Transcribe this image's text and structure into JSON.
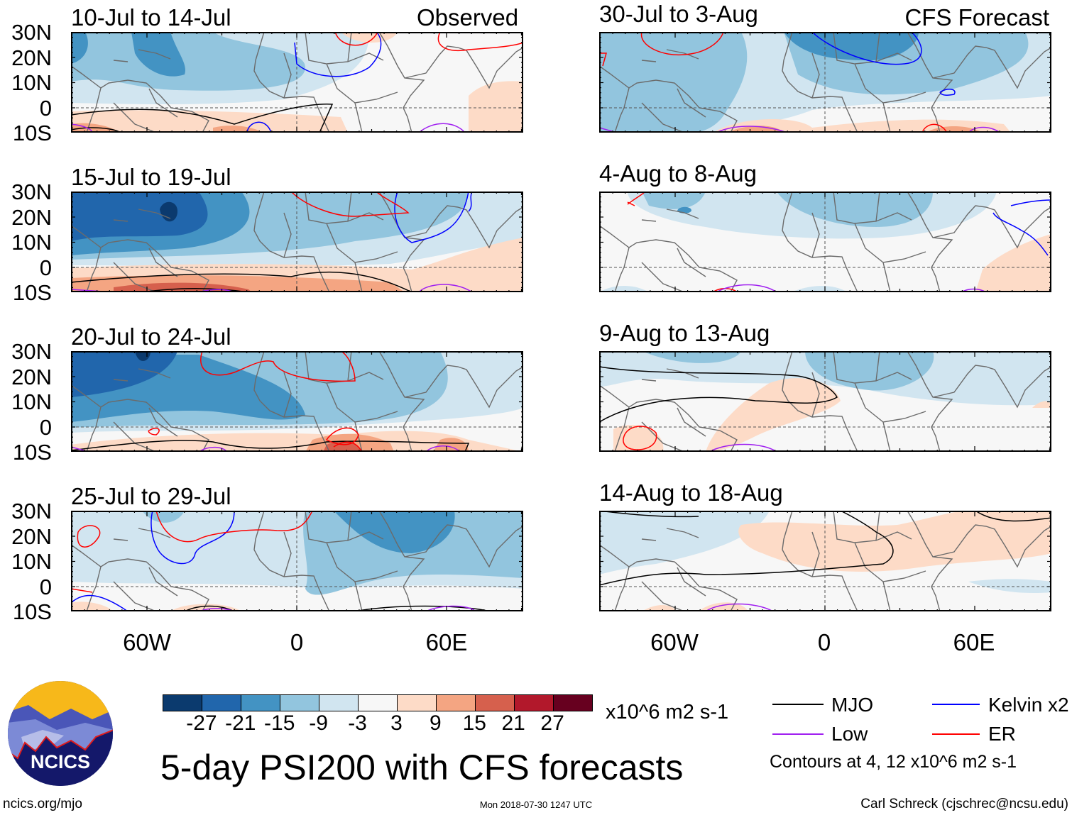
{
  "header": {
    "observed_label": "Observed",
    "forecast_label": "CFS Forecast"
  },
  "panels": {
    "left": [
      "10-Jul to 14-Jul",
      "15-Jul to 19-Jul",
      "20-Jul to 24-Jul",
      "25-Jul to 29-Jul"
    ],
    "right": [
      "30-Jul to 3-Aug",
      "4-Aug to 8-Aug",
      "9-Aug to 13-Aug",
      "14-Aug to 18-Aug"
    ]
  },
  "axes": {
    "lat_labels": [
      "30N",
      "20N",
      "10N",
      "0",
      "10S"
    ],
    "lon_labels": [
      "60W",
      "0",
      "60E"
    ]
  },
  "colorbar": {
    "colors": [
      "#0b3a6e",
      "#2166ac",
      "#4393c3",
      "#92c5de",
      "#d1e5f0",
      "#f7f7f7",
      "#fddbc7",
      "#f4a582",
      "#d6604d",
      "#b2182b",
      "#67001f"
    ],
    "labels": [
      "-27",
      "-21",
      "-15",
      "-9",
      "-3",
      "3",
      "9",
      "15",
      "21",
      "27"
    ],
    "units": "x10^6 m2 s-1"
  },
  "legend": {
    "items": [
      {
        "label": "MJO",
        "color": "#000000"
      },
      {
        "label": "Kelvin x2",
        "color": "#0000ff"
      },
      {
        "label": "Low",
        "color": "#a020f0"
      },
      {
        "label": "ER",
        "color": "#ff0000"
      }
    ],
    "contours_note": "Contours at 4, 12 x10^6 m2 s-1"
  },
  "title": "5-day PSI200 with CFS forecasts",
  "logo": {
    "text": "NCICS"
  },
  "footer": {
    "url": "ncics.org/mjo",
    "timestamp": "Mon 2018-07-30 1247 UTC",
    "credit": "Carl Schreck (cjschrec@ncsu.edu)"
  },
  "chart_data": {
    "type": "heatmap",
    "title": "5-day PSI200 with CFS forecasts",
    "variable": "200-hPa streamfunction anomaly",
    "units": "x10^6 m2 s-1",
    "lon_range": [
      -90,
      90
    ],
    "lat_range": [
      -10,
      30
    ],
    "color_levels": [
      -27,
      -21,
      -15,
      -9,
      -3,
      3,
      9,
      15,
      21,
      27
    ],
    "contour_levels": [
      4,
      12
    ],
    "observed_periods": [
      "10-Jul to 14-Jul",
      "15-Jul to 19-Jul",
      "20-Jul to 24-Jul",
      "25-Jul to 29-Jul"
    ],
    "forecast_periods": [
      "30-Jul to 3-Aug",
      "4-Aug to 8-Aug",
      "9-Aug to 13-Aug",
      "14-Aug to 18-Aug"
    ]
  }
}
